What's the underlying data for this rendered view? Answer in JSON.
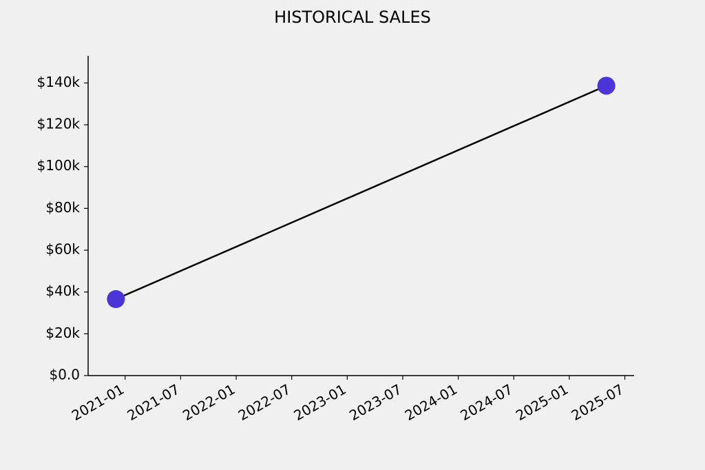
{
  "chart_data": {
    "type": "line",
    "title": "HISTORICAL SALES",
    "x": [
      "2020-12",
      "2025-05"
    ],
    "values": [
      36600,
      138700
    ],
    "line_color": "#000000",
    "marker_color": "#4b35d9",
    "xlim": [
      "2020-09",
      "2025-08"
    ],
    "xticks": [
      "2021-01",
      "2021-07",
      "2022-01",
      "2022-07",
      "2023-01",
      "2023-07",
      "2024-01",
      "2024-07",
      "2025-01",
      "2025-07"
    ],
    "ylim": [
      0,
      153000
    ],
    "yticks": [
      {
        "value": 0,
        "label": "$0.0"
      },
      {
        "value": 20000,
        "label": "$20k"
      },
      {
        "value": 40000,
        "label": "$40k"
      },
      {
        "value": 60000,
        "label": "$60k"
      },
      {
        "value": 80000,
        "label": "$80k"
      },
      {
        "value": 100000,
        "label": "$100k"
      },
      {
        "value": 120000,
        "label": "$120k"
      },
      {
        "value": 140000,
        "label": "$140k"
      }
    ],
    "grid": false
  }
}
